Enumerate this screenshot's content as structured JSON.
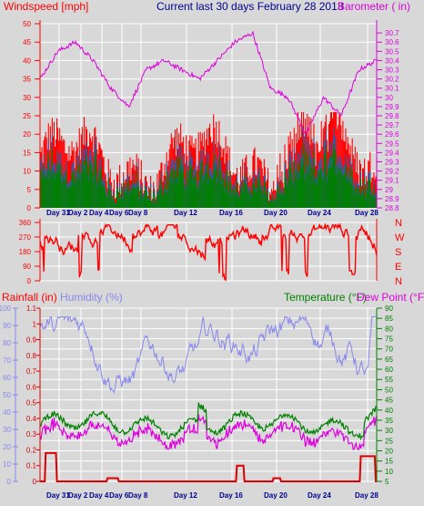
{
  "headers": {
    "top_left": "Windspeed [mph]",
    "top_center": "Current last 30 days February 28 2013",
    "top_right": "Barometer ( in)",
    "bottom_left_1": "Rainfall (in)",
    "bottom_left_2": "Humidity (%)",
    "bottom_right_1": "Temperature (°F)",
    "bottom_right_2": "Dew Point (°F)"
  },
  "colors": {
    "background": "#d8d8d8",
    "grid": "#ffffff",
    "wind_max": "#ff0000",
    "wind_avg": "#008000",
    "wind_mid": "#3a55a0",
    "barometer": "#dd00dd",
    "direction": "#ff0000",
    "humidity": "#8888ee",
    "temperature": "#008000",
    "dewpoint": "#dd00dd",
    "rainfall": "#dd0000",
    "date_labels": "#000090"
  },
  "x_axis": {
    "day_ticks": [
      "Day 31",
      "Day 2",
      "Day 4",
      "Day 6",
      "Day 8",
      "Day 12",
      "Day 16",
      "Day 20",
      "Day 24",
      "Day 28"
    ]
  },
  "chart_data": [
    {
      "type": "line",
      "title": "Current last 30 days February 28 2013",
      "series": [
        {
          "name": "Windspeed [mph]",
          "axis": "left",
          "approx_max": 26,
          "approx_typical": 10
        },
        {
          "name": "Barometer ( in)",
          "axis": "right",
          "values_approx": [
            30.2,
            30.5,
            30.6,
            30.4,
            30.1,
            29.9,
            30.3,
            30.4,
            30.3,
            30.2,
            30.4,
            30.6,
            30.7,
            30.1,
            30.0,
            29.6,
            30.0,
            29.8,
            30.3,
            30.4
          ]
        }
      ],
      "ylabel_left": "Windspeed [mph]",
      "ylim_left": [
        0,
        50
      ],
      "yticks_left": [
        "0",
        "5",
        "10",
        "15",
        "20",
        "25",
        "30",
        "35",
        "40",
        "45",
        "50"
      ],
      "ylabel_right": "Barometer ( in)",
      "ylim_right": [
        28.8,
        30.8
      ],
      "yticks_right": [
        "28.8",
        "28.9",
        "29",
        "29.1",
        "29.2",
        "29.3",
        "29.4",
        "29.5",
        "29.6",
        "29.7",
        "29.8",
        "29.9",
        "30",
        "30.1",
        "30.2",
        "30.3",
        "30.4",
        "30.5",
        "30.6",
        "30.7"
      ]
    },
    {
      "type": "line",
      "series": [
        {
          "name": "Wind direction",
          "typical_values": [
            270,
            300,
            250,
            200,
            180
          ]
        }
      ],
      "ylim": [
        0,
        360
      ],
      "yticks": [
        "0",
        "90",
        "180",
        "270",
        "360"
      ],
      "compass_labels": [
        "N",
        "W",
        "S",
        "E",
        "N"
      ]
    },
    {
      "type": "line",
      "series": [
        {
          "name": "Humidity (%)",
          "axis": "left2",
          "range_approx": [
            40,
            95
          ]
        },
        {
          "name": "Temperature (°F)",
          "axis": "right",
          "range_approx": [
            20,
            50
          ]
        },
        {
          "name": "Dew Point (°F)",
          "axis": "right",
          "range_approx": [
            15,
            38
          ]
        },
        {
          "name": "Rainfall (in)",
          "axis": "left1",
          "max_approx": 0.18
        }
      ],
      "ylim_rain": [
        0,
        1.1
      ],
      "yticks_rain": [
        "0",
        "0.1",
        "0.2",
        "0.3",
        "0.4",
        "0.5",
        "0.6",
        "0.7",
        "0.8",
        "0.9",
        "1",
        "1.1"
      ],
      "ylim_humidity": [
        0,
        100
      ],
      "yticks_humidity": [
        "0",
        "10",
        "20",
        "30",
        "40",
        "50",
        "60",
        "70",
        "80",
        "90",
        "100"
      ],
      "ylim_temp": [
        5,
        90
      ],
      "yticks_temp": [
        "5",
        "10",
        "15",
        "20",
        "25",
        "30",
        "35",
        "40",
        "45",
        "50",
        "55",
        "60",
        "65",
        "70",
        "75",
        "80",
        "85",
        "90"
      ]
    }
  ]
}
